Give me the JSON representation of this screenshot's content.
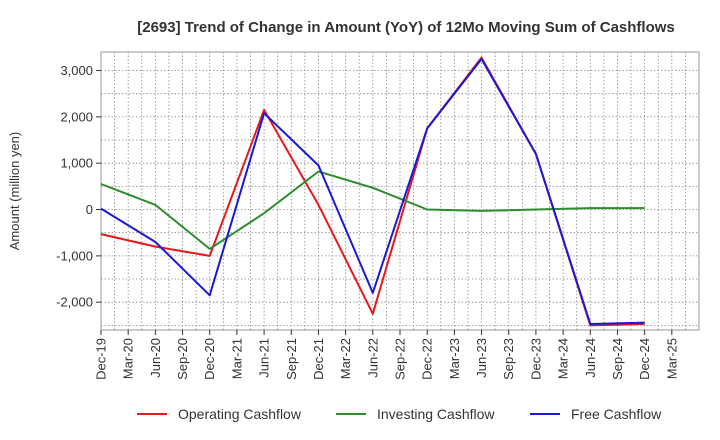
{
  "chart_data": {
    "type": "line",
    "title": "[2693]  Trend of Change in Amount (YoY) of 12Mo Moving Sum of Cashflows",
    "xlabel": "",
    "ylabel": "Amount (million yen)",
    "ylim": [
      -2600,
      3400
    ],
    "yticks": [
      3000,
      2000,
      1000,
      0,
      -1000,
      -2000
    ],
    "ytick_labels": [
      "3,000",
      "2,000",
      "1,000",
      "0",
      "-1,000",
      "-2,000"
    ],
    "categories": [
      "Dec-19",
      "Mar-20",
      "Jun-20",
      "Sep-20",
      "Dec-20",
      "Mar-21",
      "Jun-21",
      "Sep-21",
      "Dec-21",
      "Mar-22",
      "Jun-22",
      "Sep-22",
      "Dec-22",
      "Mar-23",
      "Jun-23",
      "Sep-23",
      "Dec-23",
      "Mar-24",
      "Jun-24",
      "Sep-24",
      "Dec-24",
      "Mar-25"
    ],
    "grid": true,
    "legend_position": "bottom",
    "series": [
      {
        "name": "Operating Cashflow",
        "color": "#e41a1c",
        "values": [
          -530,
          null,
          -800,
          null,
          -1000,
          null,
          2150,
          null,
          100,
          null,
          -2250,
          null,
          1750,
          null,
          3280,
          null,
          1200,
          null,
          -2500,
          null,
          -2470,
          null
        ]
      },
      {
        "name": "Investing Cashflow",
        "color": "#2e8b2e",
        "values": [
          550,
          null,
          100,
          null,
          -850,
          null,
          -80,
          null,
          820,
          null,
          470,
          null,
          0,
          null,
          -30,
          null,
          0,
          null,
          30,
          null,
          30,
          null
        ]
      },
      {
        "name": "Free Cashflow",
        "color": "#1a1ad4",
        "values": [
          20,
          null,
          -700,
          null,
          -1850,
          null,
          2080,
          null,
          950,
          null,
          -1800,
          null,
          1750,
          null,
          3250,
          null,
          1200,
          null,
          -2470,
          null,
          -2440,
          null
        ]
      }
    ]
  }
}
